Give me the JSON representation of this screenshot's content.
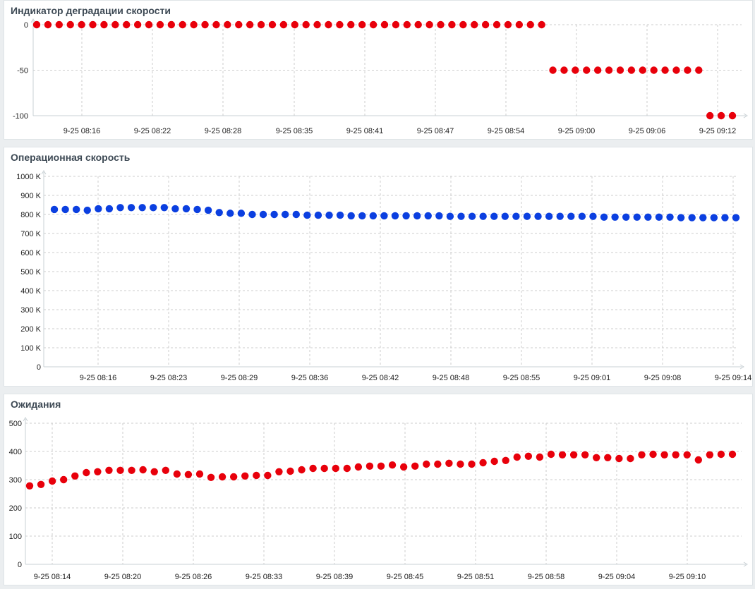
{
  "panels": [
    {
      "title": "Индикатор деградации скорости"
    },
    {
      "title": "Операционная скорость"
    },
    {
      "title": "Ожидания"
    }
  ],
  "colors": {
    "red": "#e8000b",
    "blue": "#0b3fe0",
    "grid": "#cccccc",
    "axis": "#c8d0d4"
  },
  "chart_data": [
    {
      "type": "scatter",
      "title": "Индикатор деградации скорости",
      "xlabel": "",
      "ylabel": "",
      "ylim": [
        -100,
        0
      ],
      "y_ticks": [
        "0",
        "-50",
        "-100"
      ],
      "x_ticks": [
        "9-25 08:16",
        "9-25 08:22",
        "9-25 08:28",
        "9-25 08:35",
        "9-25 08:41",
        "9-25 08:47",
        "9-25 08:54",
        "9-25 09:00",
        "9-25 09:06",
        "9-25 09:12"
      ],
      "grid": true,
      "series": [
        {
          "name": "Индикатор деградации скорости",
          "color": "#e8000b",
          "values": [
            0,
            0,
            0,
            0,
            0,
            0,
            0,
            0,
            0,
            0,
            0,
            0,
            0,
            0,
            0,
            0,
            0,
            0,
            0,
            0,
            0,
            0,
            0,
            0,
            0,
            0,
            0,
            0,
            0,
            0,
            0,
            0,
            0,
            0,
            0,
            0,
            0,
            0,
            0,
            0,
            0,
            0,
            0,
            0,
            0,
            0,
            -50,
            -50,
            -50,
            -50,
            -50,
            -50,
            -50,
            -50,
            -50,
            -50,
            -50,
            -50,
            -50,
            -50,
            -100,
            -100,
            -100
          ]
        }
      ]
    },
    {
      "type": "scatter",
      "title": "Операционная скорость",
      "xlabel": "",
      "ylabel": "",
      "ylim": [
        0,
        1000000
      ],
      "y_ticks": [
        "0",
        "100 K",
        "200 K",
        "300 K",
        "400 K",
        "500 K",
        "600 K",
        "700 K",
        "800 K",
        "900 K",
        "1000 K"
      ],
      "x_ticks": [
        "9-25 08:16",
        "9-25 08:23",
        "9-25 08:29",
        "9-25 08:36",
        "9-25 08:42",
        "9-25 08:48",
        "9-25 08:55",
        "9-25 09:01",
        "9-25 09:08",
        "9-25 09:14"
      ],
      "grid": true,
      "series": [
        {
          "name": "Операционная скорость",
          "color": "#0b3fe0",
          "values": [
            826000,
            826000,
            826000,
            822000,
            830000,
            830000,
            836000,
            836000,
            836000,
            836000,
            836000,
            830000,
            830000,
            826000,
            822000,
            810000,
            806000,
            806000,
            800000,
            800000,
            800000,
            800000,
            800000,
            796000,
            796000,
            796000,
            796000,
            793000,
            793000,
            793000,
            793000,
            793000,
            793000,
            793000,
            793000,
            793000,
            790000,
            790000,
            790000,
            790000,
            790000,
            790000,
            790000,
            790000,
            790000,
            790000,
            790000,
            790000,
            790000,
            790000,
            786000,
            786000,
            786000,
            786000,
            786000,
            786000,
            786000,
            783000,
            783000,
            783000,
            783000,
            783000,
            783000
          ]
        }
      ]
    },
    {
      "type": "scatter",
      "title": "Ожидания",
      "xlabel": "",
      "ylabel": "",
      "ylim": [
        0,
        500
      ],
      "y_ticks": [
        "0",
        "100",
        "200",
        "300",
        "400",
        "500"
      ],
      "x_ticks": [
        "9-25 08:14",
        "9-25 08:20",
        "9-25 08:26",
        "9-25 08:33",
        "9-25 08:39",
        "9-25 08:45",
        "9-25 08:51",
        "9-25 08:58",
        "9-25 09:04",
        "9-25 09:10"
      ],
      "grid": true,
      "series": [
        {
          "name": "Ожидания",
          "color": "#e8000b",
          "values": [
            278,
            283,
            295,
            300,
            313,
            325,
            328,
            333,
            333,
            333,
            335,
            328,
            333,
            320,
            318,
            320,
            308,
            310,
            310,
            313,
            315,
            315,
            328,
            330,
            335,
            340,
            340,
            340,
            340,
            345,
            348,
            348,
            352,
            345,
            348,
            355,
            355,
            358,
            355,
            355,
            360,
            365,
            368,
            380,
            383,
            380,
            390,
            388,
            388,
            388,
            378,
            378,
            375,
            375,
            388,
            390,
            388,
            388,
            388,
            370,
            388,
            390,
            390
          ]
        }
      ]
    }
  ]
}
